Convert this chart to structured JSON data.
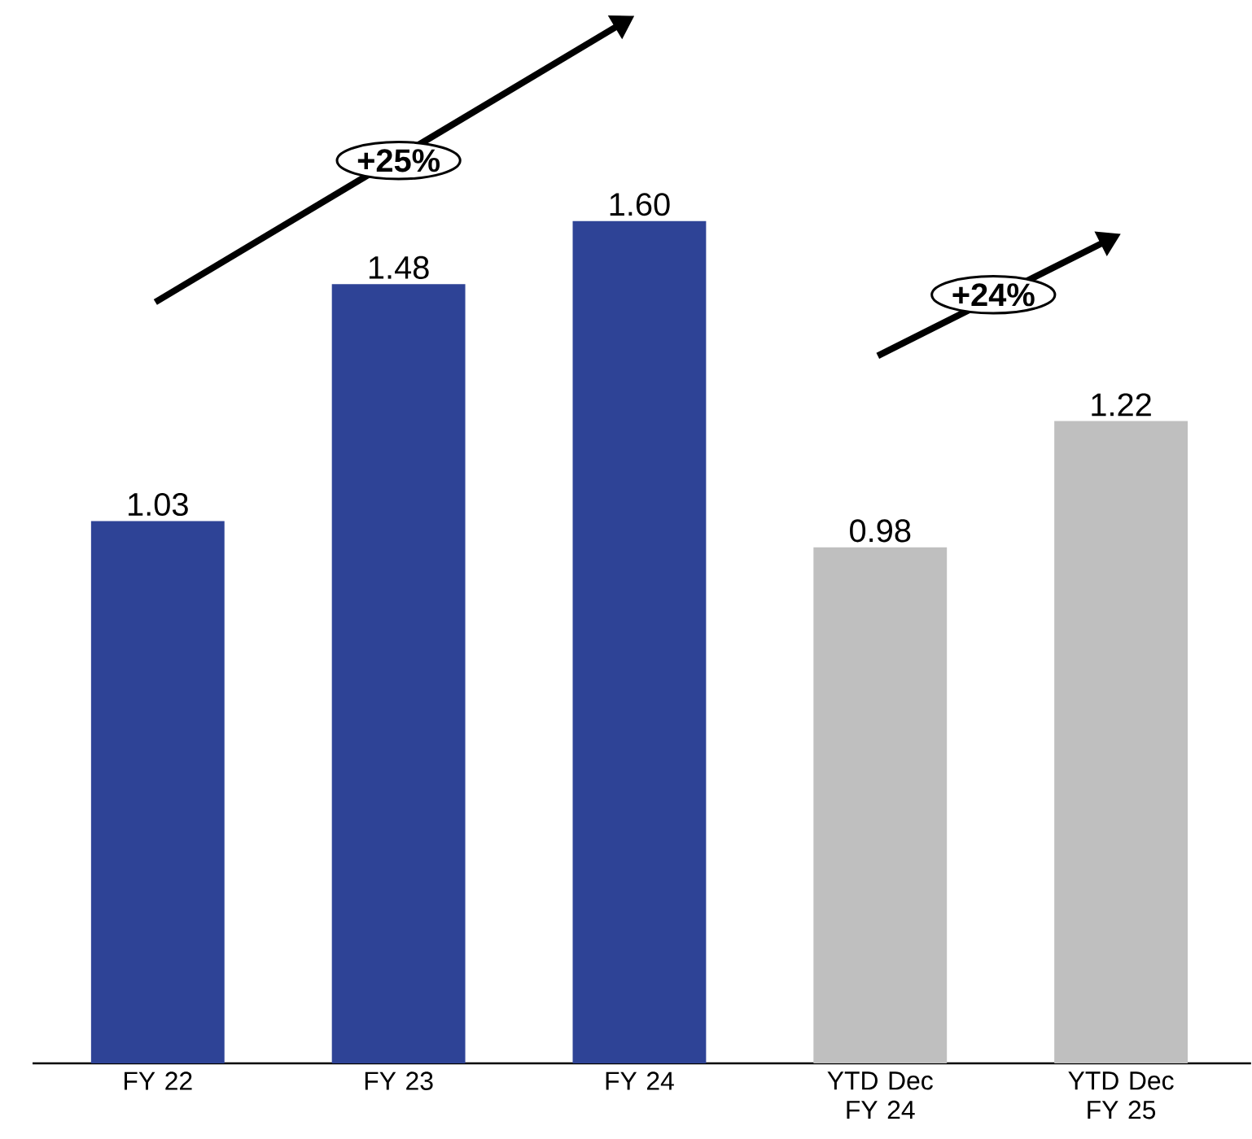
{
  "chart_data": {
    "type": "bar",
    "categories": [
      "FY 22",
      "FY 23",
      "FY 24",
      "YTD Dec FY 24",
      "YTD Dec FY 25"
    ],
    "values": [
      1.03,
      1.48,
      1.6,
      0.98,
      1.22
    ],
    "colors": [
      "#2e4396",
      "#2e4396",
      "#2e4396",
      "#bfbfbf",
      "#bfbfbf"
    ],
    "value_labels": [
      "1.03",
      "1.48",
      "1.60",
      "0.98",
      "1.22"
    ],
    "annotations": [
      "+25%",
      "+24%"
    ]
  }
}
